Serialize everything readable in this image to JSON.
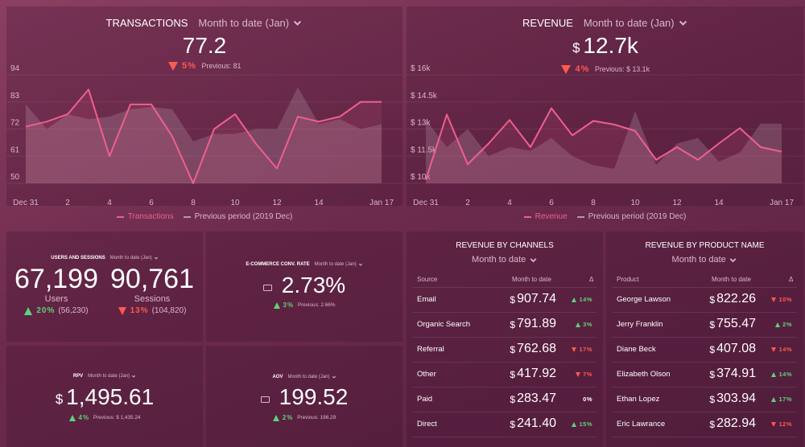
{
  "transactions": {
    "title": "TRANSACTIONS",
    "period": "Month to date (Jan)",
    "value": "77.2",
    "change": "5%",
    "direction": "down",
    "previous": "Previous: 81",
    "chart": {
      "type": "line",
      "categories": [
        "Dec 31",
        null,
        "2",
        null,
        "4",
        null,
        "6",
        null,
        "8",
        null,
        "10",
        null,
        "12",
        null,
        "14",
        null,
        null,
        "Jan 17"
      ],
      "ylim": [
        50,
        94
      ],
      "yticks": [
        50,
        61,
        72,
        83,
        94
      ],
      "grid": true,
      "series": [
        {
          "name": "Transactions",
          "color": "#ef5f8f",
          "values": [
            73,
            75,
            78,
            88,
            61,
            82,
            82,
            69,
            50,
            72,
            78,
            66,
            56,
            77,
            75,
            77,
            83,
            83
          ]
        },
        {
          "name": "Previous period (2019 Dec)",
          "color": "#b89aab",
          "values": [
            82,
            72,
            78,
            76,
            77,
            80,
            81,
            80,
            67,
            70,
            70,
            72,
            72,
            89,
            74,
            76,
            72,
            74
          ]
        }
      ]
    }
  },
  "revenue": {
    "title": "REVENUE",
    "period": "Month to date (Jan)",
    "currency": "$",
    "value": "12.7k",
    "change": "4%",
    "direction": "down",
    "previous": "Previous: $ 13.1k",
    "chart": {
      "type": "line",
      "categories": [
        "Dec 31",
        null,
        "2",
        null,
        "4",
        null,
        "6",
        null,
        "8",
        null,
        "10",
        null,
        "12",
        null,
        "14",
        null,
        null,
        "Jan 17"
      ],
      "ylim": [
        10000,
        16000
      ],
      "yticks": [
        {
          "value": 10000,
          "label": "$ 10k"
        },
        {
          "value": 11500,
          "label": "$ 11.5k"
        },
        {
          "value": 13000,
          "label": "$ 13k"
        },
        {
          "value": 14500,
          "label": "$ 14.5k"
        },
        {
          "value": 16000,
          "label": "$ 16k"
        }
      ],
      "grid": true,
      "series": [
        {
          "name": "Revenue",
          "color": "#ef5f8f",
          "values": [
            10200,
            13800,
            11050,
            12200,
            13500,
            12000,
            14150,
            12650,
            13450,
            13250,
            12900,
            11300,
            12000,
            11300,
            12200,
            13050,
            12000,
            11750
          ]
        },
        {
          "name": "Previous period (2019 Dec)",
          "color": "#b89aab",
          "values": [
            13500,
            12000,
            13000,
            11500,
            12000,
            11800,
            12500,
            11500,
            11000,
            10800,
            14000,
            11000,
            12200,
            12500,
            11200,
            11700,
            13300,
            13300
          ]
        }
      ]
    }
  },
  "users_and_sessions": {
    "title": "USERS AND SESSIONS",
    "period": "Month to date (Jan)",
    "metrics": [
      {
        "value": "67,199",
        "label": "Users",
        "change": "20%",
        "direction": "up",
        "previous": "(56,230)"
      },
      {
        "value": "90,761",
        "label": "Sessions",
        "change": "13%",
        "direction": "down",
        "previous": "(104,820)"
      }
    ]
  },
  "conversion_rate": {
    "title": "E-COMMERCE CONV. RATE",
    "period": "Month to date (Jan)",
    "value": "2.73%",
    "change": "3%",
    "direction": "up",
    "previous": "Previous: 2.66%"
  },
  "rpv": {
    "title": "RPV",
    "period": "Month to date (Jan)",
    "currency": "$",
    "value": "1,495.61",
    "change": "4%",
    "direction": "up",
    "previous": "Previous: $ 1,435.24"
  },
  "aov": {
    "title": "AOV",
    "period": "Month to date (Jan)",
    "value": "199.52",
    "change": "2%",
    "direction": "up",
    "previous": "Previous: 196.29"
  },
  "channels": {
    "title": "REVENUE BY CHANNELS",
    "period": "Month to date",
    "columns": [
      "Source",
      "Month to date",
      "Δ"
    ],
    "currency": "$",
    "rows": [
      {
        "name": "Email",
        "value": "907.74",
        "change": "14%",
        "direction": "up"
      },
      {
        "name": "Organic Search",
        "value": "791.89",
        "change": "3%",
        "direction": "up"
      },
      {
        "name": "Referral",
        "value": "762.68",
        "change": "17%",
        "direction": "down"
      },
      {
        "name": "Other",
        "value": "417.92",
        "change": "7%",
        "direction": "down"
      },
      {
        "name": "Paid",
        "value": "283.47",
        "change": "0%",
        "direction": "none"
      },
      {
        "name": "Direct",
        "value": "241.40",
        "change": "15%",
        "direction": "up"
      }
    ]
  },
  "products": {
    "title": "REVENUE BY PRODUCT NAME",
    "period": "Month to date",
    "columns": [
      "Product",
      "Month to date",
      "Δ"
    ],
    "currency": "$",
    "rows": [
      {
        "name": "George Lawson",
        "value": "822.26",
        "change": "10%",
        "direction": "down"
      },
      {
        "name": "Jerry Franklin",
        "value": "755.47",
        "change": "2%",
        "direction": "up"
      },
      {
        "name": "Diane Beck",
        "value": "407.08",
        "change": "14%",
        "direction": "down"
      },
      {
        "name": "Elizabeth Olson",
        "value": "374.91",
        "change": "14%",
        "direction": "up"
      },
      {
        "name": "Ethan Lopez",
        "value": "303.94",
        "change": "17%",
        "direction": "up"
      },
      {
        "name": "Eric Lawrance",
        "value": "282.94",
        "change": "12%",
        "direction": "down"
      }
    ]
  }
}
